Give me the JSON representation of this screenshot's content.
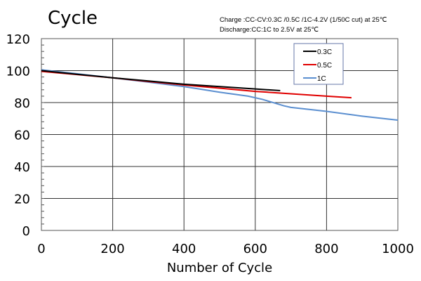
{
  "chart_data": {
    "type": "line",
    "title": "Cycle",
    "subtitle": [
      "Charge :CC-CV:0.3C /0.5C /1C-4.2V (1/50C cut) at 25℃",
      "Discharge:CC:1C  to 2.5V at 25℃"
    ],
    "xlabel": "Number of Cycle",
    "ylabel": "",
    "xlim": [
      0,
      1000
    ],
    "ylim": [
      0,
      120
    ],
    "xticks": [
      0,
      200,
      400,
      600,
      800,
      1000
    ],
    "yticks": [
      0,
      20,
      40,
      60,
      80,
      100,
      120
    ],
    "grid": true,
    "legend": "top-right",
    "series": [
      {
        "name": "0.3C",
        "color": "#000000",
        "x": [
          0,
          100,
          200,
          300,
          400,
          500,
          600,
          670
        ],
        "y": [
          100,
          97.7,
          95.5,
          93.5,
          91.5,
          90,
          88.5,
          87.5
        ]
      },
      {
        "name": "0.5C",
        "color": "#e00000",
        "x": [
          0,
          100,
          200,
          300,
          400,
          500,
          600,
          700,
          800,
          870
        ],
        "y": [
          99.5,
          97.5,
          95.5,
          93.2,
          91,
          89,
          87,
          85.5,
          84,
          83
        ]
      },
      {
        "name": "1C",
        "color": "#5b8fd0",
        "x": [
          0,
          100,
          200,
          300,
          400,
          500,
          580,
          620,
          680,
          700,
          800,
          900,
          1000
        ],
        "y": [
          100.5,
          98,
          95.5,
          92.8,
          90,
          86.5,
          84,
          82,
          78,
          77,
          74.5,
          71.5,
          69
        ]
      }
    ]
  }
}
